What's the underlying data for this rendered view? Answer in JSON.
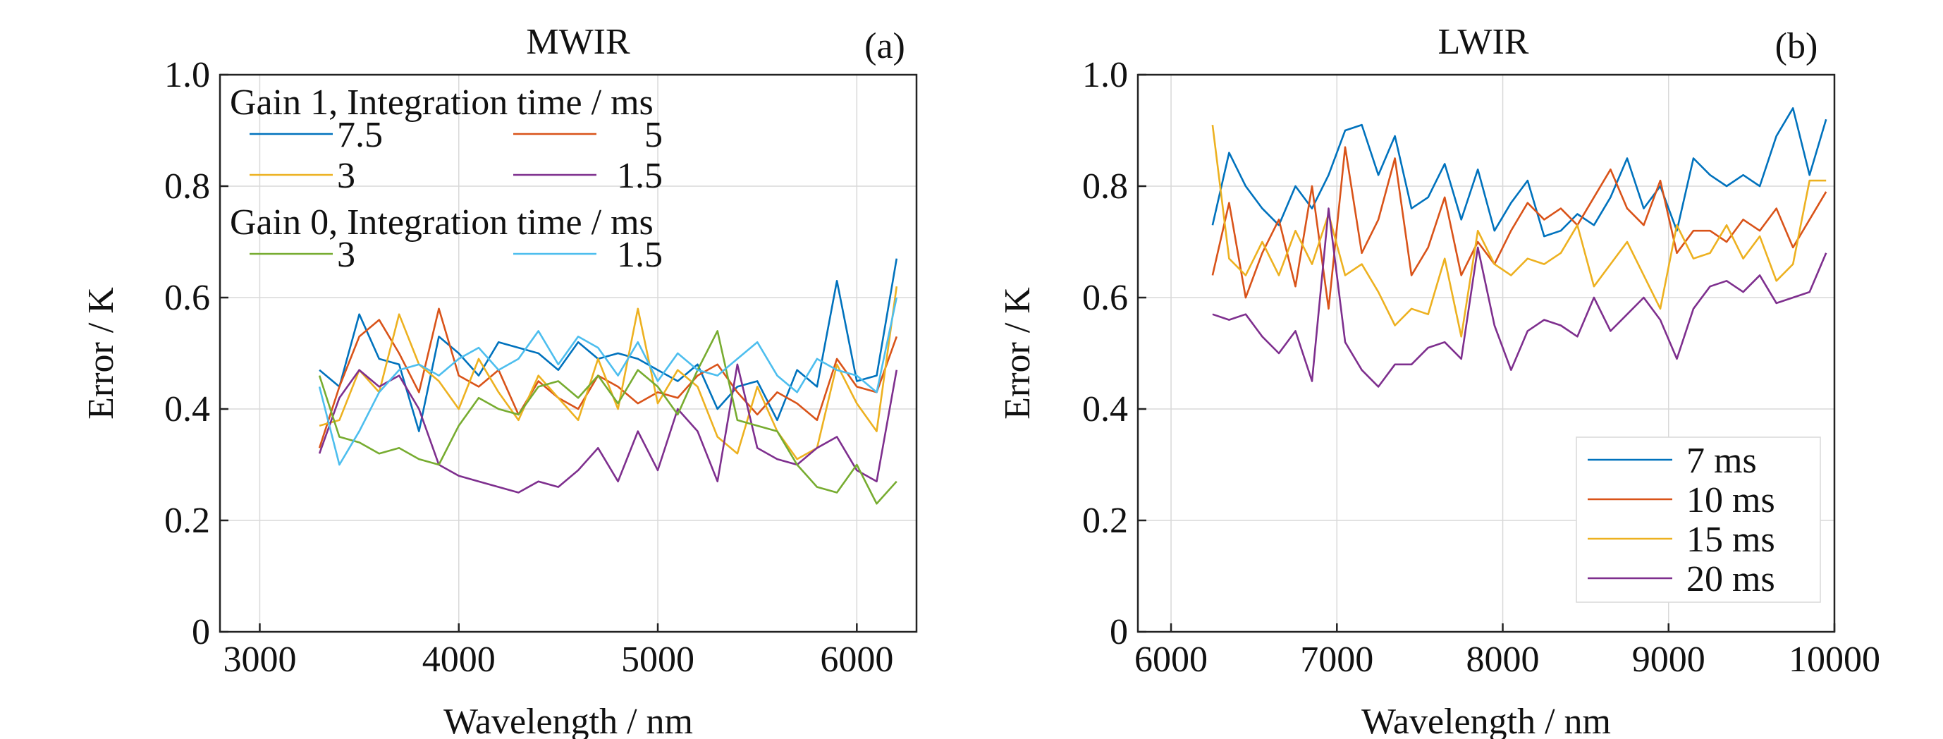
{
  "chart_data": [
    {
      "type": "line",
      "title": "MWIR",
      "panel_label": "(a)",
      "xlabel": "Wavelength / nm",
      "ylabel": "Error / K",
      "xlim": [
        2800,
        6300
      ],
      "ylim": [
        0,
        1
      ],
      "xticks": [
        "3000",
        "4000",
        "5000",
        "6000"
      ],
      "yticks": [
        "0",
        "0.2",
        "0.4",
        "0.6",
        "0.8",
        "1.0"
      ],
      "grid": true,
      "legend_position": "top-left",
      "legend_groups": [
        {
          "title": "Gain 1, Integration time / ms",
          "series": [
            0,
            1,
            2,
            3
          ]
        },
        {
          "title": "Gain 0, Integration time / ms",
          "series": [
            4,
            5
          ]
        }
      ],
      "x": [
        3300,
        3400,
        3500,
        3600,
        3700,
        3800,
        3900,
        4000,
        4100,
        4200,
        4300,
        4400,
        4500,
        4600,
        4700,
        4800,
        4900,
        5000,
        5100,
        5200,
        5300,
        5400,
        5500,
        5600,
        5700,
        5800,
        5900,
        6000,
        6100,
        6200
      ],
      "series": [
        {
          "name": "7.5",
          "color": "#0072BD",
          "values": [
            0.47,
            0.44,
            0.57,
            0.49,
            0.48,
            0.36,
            0.53,
            0.5,
            0.46,
            0.52,
            0.51,
            0.5,
            0.47,
            0.52,
            0.49,
            0.5,
            0.49,
            0.47,
            0.45,
            0.48,
            0.4,
            0.44,
            0.45,
            0.38,
            0.47,
            0.44,
            0.63,
            0.45,
            0.46,
            0.67
          ]
        },
        {
          "name": "5",
          "color": "#D95319",
          "values": [
            0.33,
            0.44,
            0.53,
            0.56,
            0.5,
            0.43,
            0.58,
            0.46,
            0.44,
            0.47,
            0.39,
            0.45,
            0.42,
            0.4,
            0.46,
            0.44,
            0.41,
            0.43,
            0.42,
            0.46,
            0.48,
            0.43,
            0.39,
            0.43,
            0.41,
            0.38,
            0.49,
            0.44,
            0.43,
            0.53
          ]
        },
        {
          "name": "3",
          "color": "#EDB120",
          "values": [
            0.37,
            0.38,
            0.47,
            0.43,
            0.57,
            0.48,
            0.45,
            0.4,
            0.49,
            0.43,
            0.38,
            0.46,
            0.42,
            0.38,
            0.49,
            0.4,
            0.58,
            0.41,
            0.47,
            0.44,
            0.35,
            0.32,
            0.44,
            0.36,
            0.31,
            0.33,
            0.48,
            0.41,
            0.36,
            0.62
          ]
        },
        {
          "name": "1.5",
          "color": "#7E2F8E",
          "values": [
            0.32,
            0.42,
            0.47,
            0.44,
            0.46,
            0.4,
            0.3,
            0.28,
            0.27,
            0.26,
            0.25,
            0.27,
            0.26,
            0.29,
            0.33,
            0.27,
            0.36,
            0.29,
            0.4,
            0.36,
            0.27,
            0.48,
            0.33,
            0.31,
            0.3,
            0.33,
            0.35,
            0.29,
            0.27,
            0.47
          ]
        },
        {
          "name": "3",
          "color": "#77AC30",
          "values": [
            0.46,
            0.35,
            0.34,
            0.32,
            0.33,
            0.31,
            0.3,
            0.37,
            0.42,
            0.4,
            0.39,
            0.44,
            0.45,
            0.42,
            0.46,
            0.41,
            0.47,
            0.44,
            0.39,
            0.47,
            0.54,
            0.38,
            0.37,
            0.36,
            0.3,
            0.26,
            0.25,
            0.3,
            0.23,
            0.27
          ]
        },
        {
          "name": "1.5",
          "color": "#4DBEEE",
          "values": [
            0.44,
            0.3,
            0.36,
            0.43,
            0.47,
            0.48,
            0.46,
            0.49,
            0.51,
            0.47,
            0.49,
            0.54,
            0.48,
            0.53,
            0.51,
            0.46,
            0.52,
            0.45,
            0.5,
            0.47,
            0.46,
            0.49,
            0.52,
            0.46,
            0.43,
            0.49,
            0.47,
            0.46,
            0.43,
            0.6
          ]
        }
      ]
    },
    {
      "type": "line",
      "title": "LWIR",
      "panel_label": "(b)",
      "xlabel": "Wavelength / nm",
      "ylabel": "Error / K",
      "xlim": [
        5800,
        10000
      ],
      "ylim": [
        0,
        1
      ],
      "xticks": [
        "6000",
        "7000",
        "8000",
        "9000",
        "10000"
      ],
      "yticks": [
        "0",
        "0.2",
        "0.4",
        "0.6",
        "0.8",
        "1.0"
      ],
      "grid": true,
      "legend_position": "bottom-right",
      "x": [
        6250,
        6350,
        6450,
        6550,
        6650,
        6750,
        6850,
        6950,
        7050,
        7150,
        7250,
        7350,
        7450,
        7550,
        7650,
        7750,
        7850,
        7950,
        8050,
        8150,
        8250,
        8350,
        8450,
        8550,
        8650,
        8750,
        8850,
        8950,
        9050,
        9150,
        9250,
        9350,
        9450,
        9550,
        9650,
        9750,
        9850,
        9950
      ],
      "series": [
        {
          "name": "7 ms",
          "color": "#0072BD",
          "values": [
            0.73,
            0.86,
            0.8,
            0.76,
            0.73,
            0.8,
            0.76,
            0.82,
            0.9,
            0.91,
            0.82,
            0.89,
            0.76,
            0.78,
            0.84,
            0.74,
            0.83,
            0.72,
            0.77,
            0.81,
            0.71,
            0.72,
            0.75,
            0.73,
            0.78,
            0.85,
            0.76,
            0.8,
            0.72,
            0.85,
            0.82,
            0.8,
            0.82,
            0.8,
            0.89,
            0.94,
            0.82,
            0.92
          ]
        },
        {
          "name": "10 ms",
          "color": "#D95319",
          "values": [
            0.64,
            0.77,
            0.6,
            0.68,
            0.74,
            0.62,
            0.8,
            0.58,
            0.87,
            0.68,
            0.74,
            0.85,
            0.64,
            0.69,
            0.78,
            0.64,
            0.7,
            0.66,
            0.72,
            0.77,
            0.74,
            0.76,
            0.73,
            0.78,
            0.83,
            0.76,
            0.73,
            0.81,
            0.68,
            0.72,
            0.72,
            0.7,
            0.74,
            0.72,
            0.76,
            0.69,
            0.74,
            0.79
          ]
        },
        {
          "name": "15 ms",
          "color": "#EDB120",
          "values": [
            0.91,
            0.67,
            0.64,
            0.7,
            0.64,
            0.72,
            0.66,
            0.75,
            0.64,
            0.66,
            0.61,
            0.55,
            0.58,
            0.57,
            0.67,
            0.53,
            0.72,
            0.66,
            0.64,
            0.67,
            0.66,
            0.68,
            0.73,
            0.62,
            0.66,
            0.7,
            0.64,
            0.58,
            0.73,
            0.67,
            0.68,
            0.73,
            0.67,
            0.71,
            0.63,
            0.66,
            0.81,
            0.81
          ]
        },
        {
          "name": "20 ms",
          "color": "#7E2F8E",
          "values": [
            0.57,
            0.56,
            0.57,
            0.53,
            0.5,
            0.54,
            0.45,
            0.76,
            0.52,
            0.47,
            0.44,
            0.48,
            0.48,
            0.51,
            0.52,
            0.49,
            0.69,
            0.55,
            0.47,
            0.54,
            0.56,
            0.55,
            0.53,
            0.6,
            0.54,
            0.57,
            0.6,
            0.56,
            0.49,
            0.58,
            0.62,
            0.63,
            0.61,
            0.64,
            0.59,
            0.6,
            0.61,
            0.68
          ]
        }
      ]
    }
  ]
}
